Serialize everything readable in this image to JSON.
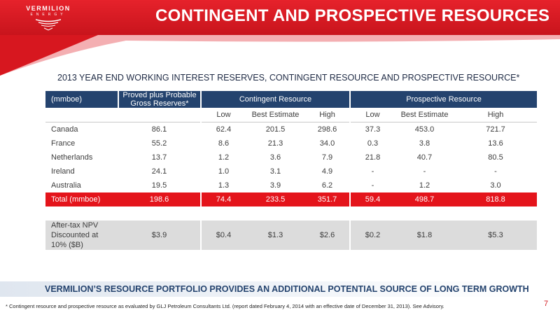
{
  "logo": {
    "name": "VERMILION",
    "sub": "ENERGY"
  },
  "title": "CONTINGENT AND PROSPECTIVE RESOURCES",
  "subtitle": "2013 YEAR END WORKING INTEREST RESERVES, CONTINGENT RESOURCE AND PROSPECTIVE RESOURCE*",
  "table": {
    "header": {
      "unit": "(mmboe)",
      "reserves_line1": "Proved plus Probable",
      "reserves_line2": "Gross Reserves*",
      "contingent": "Contingent Resource",
      "prospective": "Prospective Resource"
    },
    "subheaders": [
      "Low",
      "Best Estimate",
      "High",
      "Low",
      "Best Estimate",
      "High"
    ],
    "rows": [
      [
        "Canada",
        "86.1",
        "62.4",
        "201.5",
        "298.6",
        "37.3",
        "453.0",
        "721.7"
      ],
      [
        "France",
        "55.2",
        "8.6",
        "21.3",
        "34.0",
        "0.3",
        "3.8",
        "13.6"
      ],
      [
        "Netherlands",
        "13.7",
        "1.2",
        "3.6",
        "7.9",
        "21.8",
        "40.7",
        "80.5"
      ],
      [
        "Ireland",
        "24.1",
        "1.0",
        "3.1",
        "4.9",
        "-",
        "-",
        "-"
      ],
      [
        "Australia",
        "19.5",
        "1.3",
        "3.9",
        "6.2",
        "-",
        "1.2",
        "3.0"
      ]
    ],
    "total": [
      "Total (mmboe)",
      "198.6",
      "74.4",
      "233.5",
      "351.7",
      "59.4",
      "498.7",
      "818.8"
    ],
    "npv": {
      "label_line1": "After-tax NPV",
      "label_line2": "Discounted at",
      "label_line3": "10% ($B)",
      "values": [
        "$3.9",
        "$0.4",
        "$1.3",
        "$2.6",
        "$0.2",
        "$1.8",
        "$5.3"
      ]
    }
  },
  "tagline": "VERMILION’S RESOURCE PORTFOLIO PROVIDES AN ADDITIONAL POTENTIAL SOURCE OF LONG TERM GROWTH",
  "footnote": "* Contingent resource and prospective resource as evaluated by GLJ Petroleum Consultants Ltd. (report dated February 4, 2014 with an effective date of December 31, 2013).  See Advisory.",
  "page_number": "7",
  "colors": {
    "brand_red": "#e4141b",
    "navy": "#24436e"
  }
}
